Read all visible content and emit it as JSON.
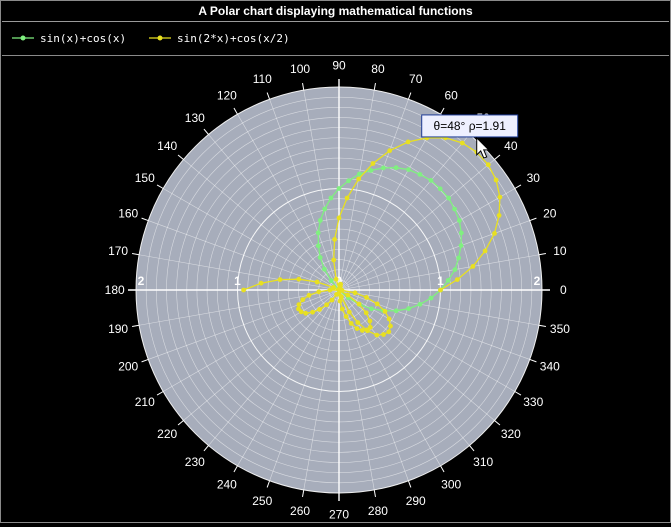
{
  "window": {
    "title": "A Polar chart displaying mathematical functions"
  },
  "legend": {
    "items": [
      {
        "label": "sin(x)+cos(x)",
        "color": "#80f080",
        "icon": "line-with-dot-marker"
      },
      {
        "label": "sin(2*x)+cos(x/2)",
        "color": "#e8e020",
        "icon": "line-with-dot-marker"
      }
    ]
  },
  "tooltip": {
    "text": "θ=48° ρ=1.91",
    "theta_deg": 48,
    "rho": 1.91
  },
  "colors": {
    "background": "#000000",
    "plot_disc": "#a7adbb",
    "grid": "#ffffff",
    "series1": "#80f080",
    "series2": "#e8e020"
  },
  "chart_data": {
    "type": "line",
    "coordinate_system": "polar",
    "title": "A Polar chart displaying mathematical functions",
    "angle_unit": "degrees",
    "angle_ticks": [
      0,
      10,
      20,
      30,
      40,
      50,
      60,
      70,
      80,
      90,
      100,
      110,
      120,
      130,
      140,
      150,
      160,
      170,
      180,
      190,
      200,
      210,
      220,
      230,
      240,
      250,
      260,
      270,
      280,
      290,
      300,
      310,
      320,
      330,
      340,
      350
    ],
    "radius_ticks": [
      0,
      1,
      2
    ],
    "radius_range": [
      0,
      2
    ],
    "grid": true,
    "legend_position": "top",
    "series": [
      {
        "name": "sin(x)+cos(x)",
        "color": "#80f080",
        "x": [
          -45,
          -40,
          -35,
          -30,
          -25,
          -20,
          -15,
          -10,
          -5,
          0,
          5,
          10,
          15,
          20,
          25,
          30,
          35,
          40,
          45,
          50,
          55,
          60,
          65,
          70,
          75,
          80,
          85,
          90,
          95,
          100,
          105,
          110,
          115,
          120,
          125,
          130,
          135
        ],
        "y": [
          0,
          0.12,
          0.25,
          0.37,
          0.48,
          0.6,
          0.71,
          0.81,
          0.91,
          1,
          1.08,
          1.16,
          1.22,
          1.28,
          1.33,
          1.37,
          1.39,
          1.41,
          1.41,
          1.41,
          1.39,
          1.37,
          1.33,
          1.28,
          1.22,
          1.16,
          1.08,
          1,
          0.91,
          0.81,
          0.71,
          0.6,
          0.48,
          0.37,
          0.25,
          0.12,
          0
        ]
      },
      {
        "name": "sin(2*x)+cos(x/2)",
        "color": "#e8e020",
        "x": [
          0,
          5,
          10,
          15,
          20,
          25,
          30,
          35,
          40,
          45,
          50,
          55,
          60,
          65,
          70,
          75,
          80,
          85,
          90,
          95,
          100,
          105,
          110,
          115,
          120,
          125,
          130,
          135,
          140,
          145,
          150,
          155,
          160,
          165,
          170,
          175,
          180,
          185,
          190,
          195,
          200,
          205,
          210,
          215,
          220,
          225,
          230,
          235,
          240,
          245,
          250,
          255,
          260,
          265,
          270,
          275,
          280,
          285,
          290,
          295,
          300,
          305,
          310,
          315,
          320,
          325,
          330,
          335,
          340,
          345,
          350,
          355,
          360
        ],
        "y": [
          1,
          1.17,
          1.34,
          1.49,
          1.63,
          1.74,
          1.83,
          1.89,
          1.92,
          1.92,
          1.89,
          1.83,
          1.73,
          1.61,
          1.46,
          1.29,
          1.11,
          0.91,
          0.71,
          0.5,
          0.3,
          0.11,
          -0.07,
          -0.24,
          -0.37,
          -0.49,
          -0.58,
          -0.62,
          -0.64,
          -0.62,
          -0.57,
          -0.5,
          -0.4,
          -0.28,
          -0.16,
          -0.03,
          0.09,
          0.2,
          0.3,
          0.37,
          0.42,
          0.44,
          0.43,
          0.4,
          0.34,
          0.27,
          0.19,
          0.12,
          0.05,
          -0.01,
          -0.04,
          -0.06,
          -0.05,
          -0.01,
          0.04,
          0.11,
          0.19,
          0.27,
          0.35,
          0.42,
          0.46,
          0.48,
          0.48,
          0.43,
          0.35,
          0.24,
          0.1,
          -0.06,
          -0.23,
          -0.41,
          -0.59,
          -0.77,
          -0.94
        ]
      }
    ]
  }
}
